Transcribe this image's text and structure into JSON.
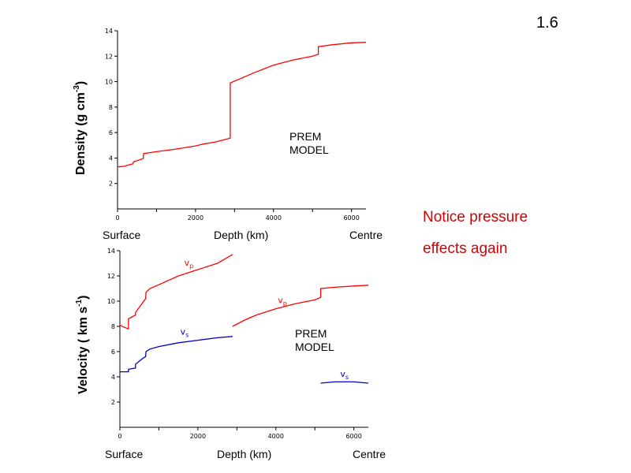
{
  "slide_number": "1.6",
  "notice": {
    "line1": "Notice pressure",
    "line2": "effects again",
    "color": "#d40000"
  },
  "colors": {
    "vp": "#ff0000",
    "vs": "#0000cc",
    "density": "#ff0000",
    "axis": "#000000"
  },
  "chart_data": [
    {
      "type": "line",
      "ylabel_main": "Density  (g cm",
      "ylabel_sup": "-3",
      "ylabel_end": ")",
      "xlabel": "Depth  (km)",
      "x_left_label": "Surface",
      "x_right_label": "Centre",
      "annotation_line1": "PREM",
      "annotation_line2": "MODEL",
      "xlim": [
        0,
        6371
      ],
      "ylim": [
        0,
        14
      ],
      "x_ticks": [
        0,
        2000,
        4000,
        6000
      ],
      "y_ticks": [
        2,
        4,
        6,
        8,
        10,
        12,
        14
      ],
      "series": [
        {
          "color": "#ff0000",
          "points": [
            [
              0,
              3.3
            ],
            [
              200,
              3.35
            ],
            [
              220,
              3.4
            ],
            [
              400,
              3.55
            ],
            [
              410,
              3.7
            ],
            [
              660,
              3.95
            ],
            [
              670,
              4.35
            ],
            [
              1000,
              4.5
            ],
            [
              1500,
              4.7
            ],
            [
              2000,
              4.95
            ],
            [
              2200,
              5.1
            ],
            [
              2500,
              5.25
            ],
            [
              2891,
              5.56
            ],
            [
              2891,
              9.9
            ],
            [
              3200,
              10.3
            ],
            [
              3500,
              10.7
            ],
            [
              4000,
              11.3
            ],
            [
              4500,
              11.7
            ],
            [
              5000,
              12.0
            ],
            [
              5150,
              12.15
            ],
            [
              5150,
              12.75
            ],
            [
              5500,
              12.9
            ],
            [
              6000,
              13.05
            ],
            [
              6371,
              13.09
            ]
          ]
        }
      ]
    },
    {
      "type": "line",
      "ylabel_main": "Velocity  ( km s",
      "ylabel_sup": "-1",
      "ylabel_end": ")",
      "xlabel": "Depth  (km)",
      "x_left_label": "Surface",
      "x_right_label": "Centre",
      "annotation_line1": "PREM",
      "annotation_line2": "MODEL",
      "xlim": [
        0,
        6371
      ],
      "ylim": [
        0,
        14
      ],
      "x_ticks": [
        0,
        2000,
        4000,
        6000
      ],
      "y_ticks": [
        2,
        4,
        6,
        8,
        10,
        12,
        14
      ],
      "series": [
        {
          "name": "v",
          "sub": "p",
          "color": "#ff0000",
          "points": [
            [
              0,
              8.1
            ],
            [
              100,
              7.95
            ],
            [
              220,
              7.8
            ],
            [
              220,
              8.6
            ],
            [
              400,
              8.9
            ],
            [
              400,
              9.1
            ],
            [
              660,
              10.2
            ],
            [
              670,
              10.7
            ],
            [
              771,
              11.0
            ],
            [
              1000,
              11.3
            ],
            [
              1500,
              12.0
            ],
            [
              2000,
              12.5
            ],
            [
              2500,
              13.0
            ],
            [
              2891,
              13.7
            ]
          ],
          "label_at": [
            1650,
            12.8
          ]
        },
        {
          "name": "v",
          "sub": "p",
          "color": "#ff0000",
          "points": [
            [
              2891,
              8.0
            ],
            [
              3200,
              8.5
            ],
            [
              3500,
              8.9
            ],
            [
              4000,
              9.4
            ],
            [
              4500,
              9.8
            ],
            [
              5000,
              10.1
            ],
            [
              5150,
              10.3
            ],
            [
              5150,
              11.0
            ],
            [
              5500,
              11.1
            ],
            [
              6000,
              11.2
            ],
            [
              6371,
              11.26
            ]
          ],
          "label_at": [
            4050,
            9.85
          ]
        },
        {
          "name": "v",
          "sub": "s",
          "color": "#0000cc",
          "points": [
            [
              0,
              4.4
            ],
            [
              220,
              4.4
            ],
            [
              220,
              4.6
            ],
            [
              400,
              4.7
            ],
            [
              400,
              5.0
            ],
            [
              600,
              5.5
            ],
            [
              660,
              5.6
            ],
            [
              670,
              6.0
            ],
            [
              771,
              6.2
            ],
            [
              1000,
              6.4
            ],
            [
              1500,
              6.7
            ],
            [
              2000,
              6.9
            ],
            [
              2500,
              7.1
            ],
            [
              2891,
              7.2
            ]
          ],
          "label_at": [
            1550,
            7.35
          ]
        },
        {
          "name": "v",
          "sub": "s",
          "color": "#0000cc",
          "points": [
            [
              5150,
              3.5
            ],
            [
              5500,
              3.6
            ],
            [
              6000,
              3.6
            ],
            [
              6371,
              3.5
            ]
          ],
          "label_at": [
            5650,
            4.0
          ]
        }
      ]
    }
  ]
}
